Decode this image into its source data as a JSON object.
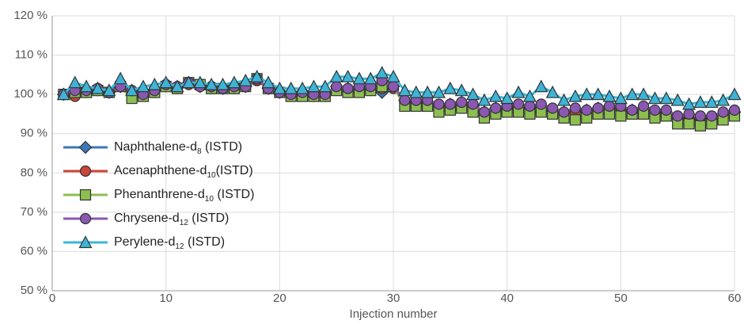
{
  "chart_data": {
    "type": "line",
    "xlabel": "Injection number",
    "x": [
      1,
      2,
      3,
      4,
      5,
      6,
      7,
      8,
      9,
      10,
      11,
      12,
      13,
      14,
      15,
      16,
      17,
      18,
      19,
      20,
      21,
      22,
      23,
      24,
      25,
      26,
      27,
      28,
      29,
      30,
      31,
      32,
      33,
      34,
      35,
      36,
      37,
      38,
      39,
      40,
      41,
      42,
      43,
      44,
      45,
      46,
      47,
      48,
      49,
      50,
      51,
      52,
      53,
      54,
      55,
      56,
      57,
      58,
      59,
      60
    ],
    "xlim": [
      0,
      60
    ],
    "xticks": [
      0,
      10,
      20,
      30,
      40,
      50,
      60
    ],
    "ylim": [
      50,
      120
    ],
    "yticks": [
      {
        "value": 50,
        "label": "50 %"
      },
      {
        "value": 60,
        "label": "60 %"
      },
      {
        "value": 70,
        "label": "70 %"
      },
      {
        "value": 80,
        "label": "80 %"
      },
      {
        "value": 90,
        "label": "90 %"
      },
      {
        "value": 100,
        "label": "100 %"
      },
      {
        "value": 110,
        "label": "110 %"
      },
      {
        "value": 120,
        "label": "120 %"
      }
    ],
    "grid": true,
    "legend": "left",
    "series": [
      {
        "name": "Naphthalene-d8 (ISTD)",
        "color": "#3a78b8",
        "marker": "diamond",
        "values": [
          100,
          101,
          101,
          101.5,
          100.5,
          102,
          101,
          100,
          101,
          102.5,
          102,
          103,
          102,
          102,
          101.5,
          102,
          102,
          104,
          101.5,
          100.5,
          100,
          100.5,
          100,
          100,
          102,
          101.5,
          102,
          102,
          100.5,
          102,
          98.5,
          98.5,
          98,
          97,
          97.5,
          98,
          97,
          95.5,
          96.5,
          97,
          96.5,
          96.5,
          97,
          96,
          95.5,
          96,
          96,
          96.5,
          97,
          96.5,
          96,
          96.5,
          95.5,
          95.5,
          94,
          94,
          93.5,
          94,
          95,
          95.5
        ]
      },
      {
        "name": "Acenaphthene-d10(ISTD)",
        "color": "#c8463c",
        "marker": "circle",
        "values": [
          100,
          99.5,
          100.5,
          101,
          100.5,
          102,
          100.5,
          100,
          100.5,
          102,
          101.5,
          102.5,
          102,
          101.5,
          101.5,
          101.5,
          102,
          103.5,
          101.5,
          100.5,
          100,
          100,
          99.5,
          99.5,
          101.5,
          101,
          101,
          101,
          101.5,
          101.5,
          98,
          98,
          97.5,
          96.5,
          97,
          97.5,
          96.5,
          95,
          96,
          96,
          95.5,
          95,
          95.5,
          95.5,
          95,
          95.5,
          95.5,
          96,
          96.5,
          96,
          95.5,
          96,
          95,
          95,
          93.5,
          93.5,
          93,
          93.5,
          94.5,
          95.5
        ]
      },
      {
        "name": "Phenanthrene-d10 (ISTD)",
        "color": "#8cbf4f",
        "marker": "square",
        "values": [
          100,
          100.5,
          100.5,
          101,
          100.5,
          102,
          99,
          99.5,
          100.5,
          102,
          101.5,
          103,
          102.5,
          101.5,
          101.5,
          101.5,
          102,
          104,
          101.5,
          100.5,
          99.5,
          99.5,
          99.5,
          99.5,
          101,
          100.5,
          100.5,
          101,
          102,
          102,
          97,
          97,
          97,
          95.5,
          96,
          96.5,
          95.5,
          94,
          95,
          95.5,
          95.5,
          95,
          95.5,
          95,
          94,
          93.5,
          94,
          95,
          95,
          94.5,
          95,
          95,
          94,
          94.5,
          92.5,
          92.5,
          92,
          92.5,
          93.5,
          94.5
        ]
      },
      {
        "name": "Chrysene-d12 (ISTD)",
        "color": "#8a58b0",
        "marker": "circle",
        "values": [
          100,
          101,
          101,
          101.5,
          100.5,
          102,
          101,
          100,
          101,
          102.5,
          102,
          103,
          102,
          102,
          101.5,
          102,
          102,
          104,
          101.5,
          100.5,
          100,
          100.5,
          100,
          100,
          102,
          101.5,
          102,
          102,
          103.5,
          102,
          98.5,
          98.5,
          98.5,
          97.5,
          97.5,
          98,
          97.5,
          95.5,
          96.5,
          97,
          97.5,
          97,
          97.5,
          96.5,
          95.5,
          96.5,
          96,
          96.5,
          97,
          97,
          96,
          97,
          96,
          96,
          94.5,
          95,
          94.5,
          94.5,
          95.5,
          96
        ]
      },
      {
        "name": "Perylene-d12 (ISTD)",
        "color": "#3db4d6",
        "marker": "triangle",
        "values": [
          100,
          103,
          102,
          101.5,
          101,
          104,
          101,
          102,
          102.5,
          103,
          102,
          103,
          103,
          102.5,
          102.5,
          103,
          103.5,
          104.5,
          103,
          101.5,
          101.5,
          101.5,
          102,
          102,
          104.5,
          104.5,
          104,
          104,
          105.5,
          104.5,
          101,
          100.5,
          100.5,
          100.5,
          101.5,
          101,
          100,
          98.5,
          99.5,
          99,
          100.5,
          99.5,
          102,
          100.5,
          98.5,
          99.5,
          100,
          100,
          99.5,
          99,
          100,
          100,
          99,
          99,
          98.5,
          97.5,
          98,
          98,
          98.5,
          100
        ]
      }
    ]
  }
}
